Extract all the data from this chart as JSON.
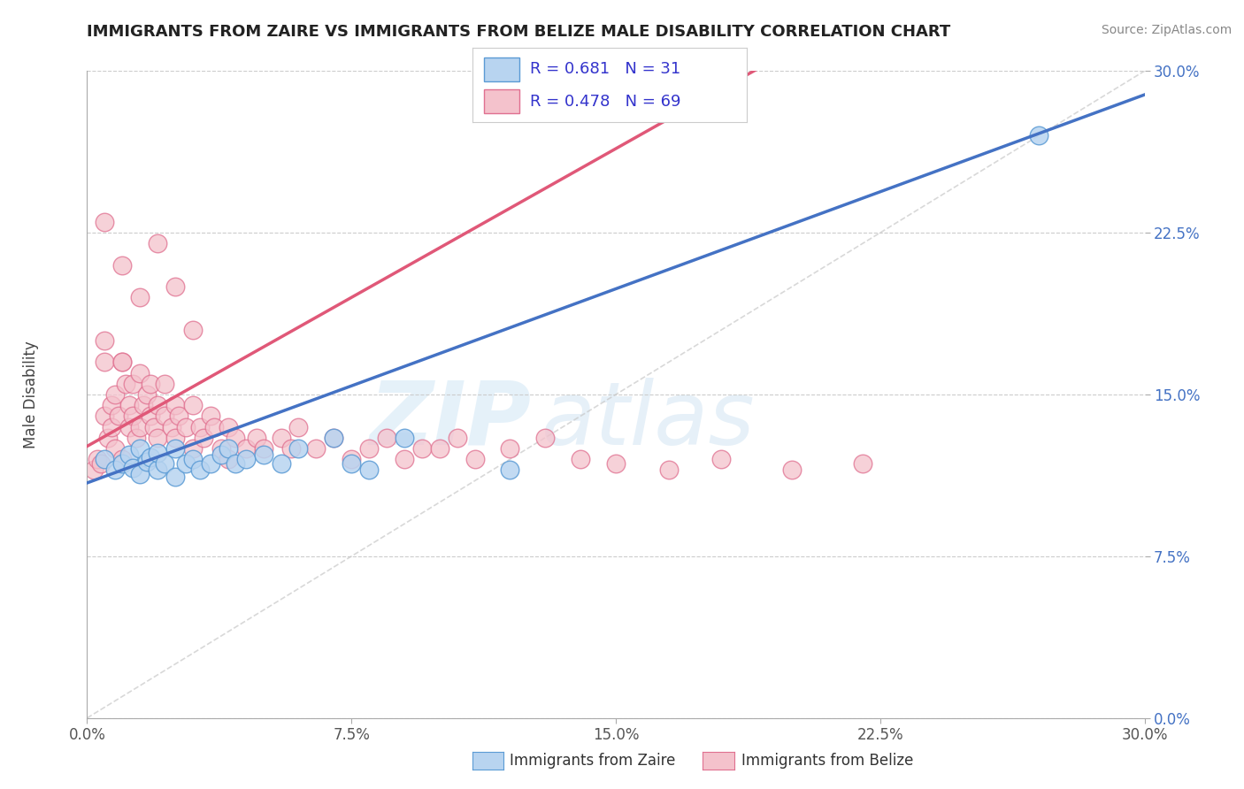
{
  "title": "IMMIGRANTS FROM ZAIRE VS IMMIGRANTS FROM BELIZE MALE DISABILITY CORRELATION CHART",
  "source": "Source: ZipAtlas.com",
  "ylabel": "Male Disability",
  "xlim": [
    0.0,
    0.3
  ],
  "ylim": [
    0.0,
    0.3
  ],
  "xticks": [
    0.0,
    0.075,
    0.15,
    0.225,
    0.3
  ],
  "yticks": [
    0.0,
    0.075,
    0.15,
    0.225,
    0.3
  ],
  "xticklabels": [
    "0.0%",
    "7.5%",
    "15.0%",
    "22.5%",
    "30.0%"
  ],
  "yticklabels": [
    "0.0%",
    "7.5%",
    "15.0%",
    "22.5%",
    "30.0%"
  ],
  "legend_r_zaire": "0.681",
  "legend_n_zaire": "31",
  "legend_r_belize": "0.478",
  "legend_n_belize": "69",
  "color_zaire_fill": "#b8d4f0",
  "color_zaire_edge": "#5b9bd5",
  "color_belize_fill": "#f4c2cc",
  "color_belize_edge": "#e07090",
  "color_zaire_line": "#4472c4",
  "color_belize_line": "#e05878",
  "color_legend_text": "#3333cc",
  "watermark_zip": "ZIP",
  "watermark_atlas": "atlas",
  "background_color": "#ffffff",
  "grid_color": "#cccccc",
  "zaire_x": [
    0.005,
    0.008,
    0.01,
    0.012,
    0.013,
    0.015,
    0.015,
    0.017,
    0.018,
    0.02,
    0.02,
    0.022,
    0.025,
    0.025,
    0.028,
    0.03,
    0.032,
    0.035,
    0.038,
    0.04,
    0.042,
    0.045,
    0.05,
    0.055,
    0.06,
    0.07,
    0.075,
    0.08,
    0.09,
    0.27,
    0.12
  ],
  "zaire_y": [
    0.12,
    0.115,
    0.118,
    0.122,
    0.116,
    0.125,
    0.113,
    0.119,
    0.121,
    0.115,
    0.123,
    0.118,
    0.125,
    0.112,
    0.118,
    0.12,
    0.115,
    0.118,
    0.122,
    0.125,
    0.118,
    0.12,
    0.122,
    0.118,
    0.125,
    0.13,
    0.118,
    0.115,
    0.13,
    0.27,
    0.115
  ],
  "belize_x": [
    0.002,
    0.003,
    0.004,
    0.005,
    0.005,
    0.006,
    0.007,
    0.007,
    0.008,
    0.008,
    0.009,
    0.01,
    0.01,
    0.011,
    0.012,
    0.012,
    0.013,
    0.013,
    0.014,
    0.015,
    0.015,
    0.016,
    0.017,
    0.018,
    0.018,
    0.019,
    0.02,
    0.02,
    0.022,
    0.022,
    0.024,
    0.025,
    0.025,
    0.026,
    0.028,
    0.03,
    0.03,
    0.032,
    0.033,
    0.035,
    0.036,
    0.038,
    0.04,
    0.04,
    0.042,
    0.045,
    0.048,
    0.05,
    0.055,
    0.058,
    0.06,
    0.065,
    0.07,
    0.075,
    0.08,
    0.085,
    0.09,
    0.095,
    0.1,
    0.105,
    0.11,
    0.12,
    0.13,
    0.14,
    0.15,
    0.165,
    0.18,
    0.2,
    0.22
  ],
  "belize_y": [
    0.115,
    0.12,
    0.118,
    0.165,
    0.14,
    0.13,
    0.145,
    0.135,
    0.15,
    0.125,
    0.14,
    0.165,
    0.12,
    0.155,
    0.135,
    0.145,
    0.14,
    0.155,
    0.13,
    0.16,
    0.135,
    0.145,
    0.15,
    0.14,
    0.155,
    0.135,
    0.145,
    0.13,
    0.14,
    0.155,
    0.135,
    0.145,
    0.13,
    0.14,
    0.135,
    0.145,
    0.125,
    0.135,
    0.13,
    0.14,
    0.135,
    0.125,
    0.135,
    0.12,
    0.13,
    0.125,
    0.13,
    0.125,
    0.13,
    0.125,
    0.135,
    0.125,
    0.13,
    0.12,
    0.125,
    0.13,
    0.12,
    0.125,
    0.125,
    0.13,
    0.12,
    0.125,
    0.13,
    0.12,
    0.118,
    0.115,
    0.12,
    0.115,
    0.118
  ],
  "belize_high_x": [
    0.005,
    0.01,
    0.015,
    0.02,
    0.025,
    0.03,
    0.005,
    0.01
  ],
  "belize_high_y": [
    0.23,
    0.21,
    0.195,
    0.22,
    0.2,
    0.18,
    0.175,
    0.165
  ]
}
